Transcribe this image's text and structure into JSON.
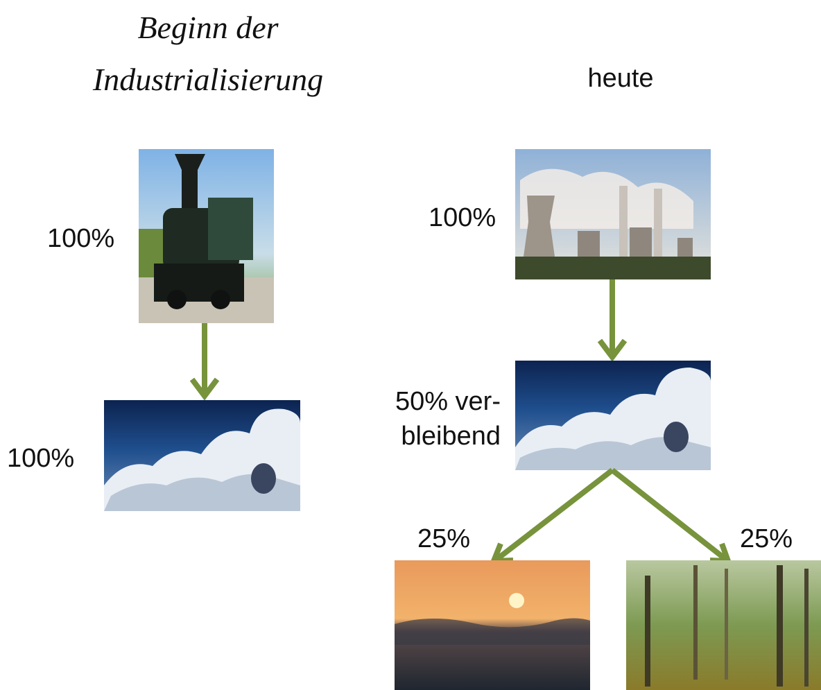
{
  "left": {
    "title": [
      "Beginn der",
      "Industrialisierung"
    ],
    "labels": {
      "train": "100%",
      "clouds": "100%"
    }
  },
  "right": {
    "title": "heute",
    "labels": {
      "plant": "100%",
      "clouds": [
        "50% ver-",
        "bleibend"
      ],
      "ocean": "25%",
      "forest": "25%"
    }
  }
}
